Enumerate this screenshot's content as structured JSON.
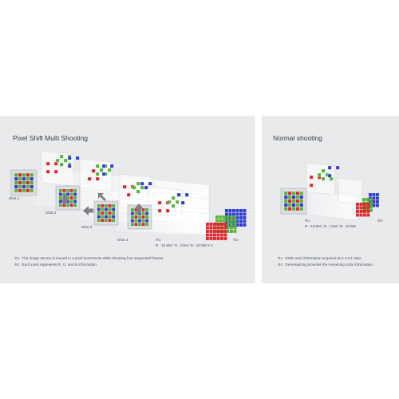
{
  "left_panel": {
    "title": "Pixel Shift Multi Shooting",
    "shots": [
      "Shot.1",
      "Shot.2",
      "Shot.3",
      "Shot.4"
    ],
    "marker1": "※1",
    "marker2": "※2",
    "resolution": "R : 10.5M / G : 21M / B : 10.5M X 4",
    "notes": [
      {
        "mark": "※1",
        "text": "The image sensor is moved in 1-pixel increments while shooting four sequential frames."
      },
      {
        "mark": "※2",
        "text": "Each pixel represents R, G, and B information."
      }
    ]
  },
  "right_panel": {
    "title": "Normal shooting",
    "marker1": "※1",
    "marker2": "※2",
    "resolution": "R : 10.5M / G : 21M / B : 10.5M",
    "notes": [
      {
        "mark": "※1",
        "text": "RGB color information acquired at a 1:2:1 ratio."
      },
      {
        "mark": "※2",
        "text": "Demosaicing provides the remaining color information."
      }
    ]
  },
  "colors": {
    "red": "#e0262c",
    "green": "#55b43a",
    "blue": "#2e3bd6",
    "panel": "#e9eaec",
    "arrow": "#7d7f82"
  }
}
